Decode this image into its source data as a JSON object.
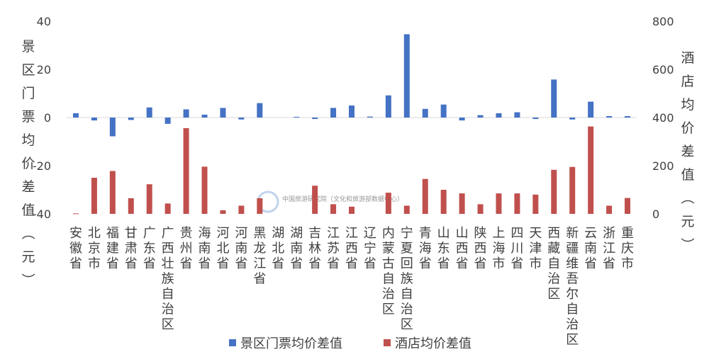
{
  "chart_data": {
    "type": "bar",
    "categories": [
      "安徽省",
      "北京市",
      "福建省",
      "甘肃省",
      "广东省",
      "广西壮族自治区",
      "贵州省",
      "海南省",
      "河北省",
      "河南省",
      "黑龙江省",
      "湖北省",
      "湖南省",
      "吉林省",
      "江苏省",
      "江西省",
      "辽宁省",
      "内蒙古自治区",
      "宁夏回族自治区",
      "青海省",
      "山东省",
      "山西省",
      "陕西省",
      "上海市",
      "四川省",
      "天津市",
      "西藏自治区",
      "新疆维吾尔自治区",
      "云南省",
      "浙江省",
      "重庆市"
    ],
    "series": [
      {
        "name": "景区门票均价差值",
        "color": "#4472c4",
        "axis": "left",
        "values": [
          1.8,
          -1.2,
          -7.8,
          -1.0,
          4.2,
          -2.6,
          3.4,
          1.2,
          4.0,
          -0.8,
          6.0,
          0.0,
          0.3,
          -0.6,
          4.0,
          5.0,
          0.4,
          9.2,
          34.6,
          3.6,
          5.4,
          -1.2,
          1.0,
          1.8,
          2.2,
          -0.6,
          15.8,
          -0.8,
          6.6,
          0.6,
          0.6
        ]
      },
      {
        "name": "酒店均价差值",
        "color": "#c0504d",
        "axis": "right",
        "values": [
          2,
          150,
          178,
          65,
          123,
          43,
          356,
          196,
          15,
          34,
          65,
          0,
          0,
          117,
          40,
          30,
          0,
          88,
          34,
          145,
          100,
          85,
          40,
          85,
          85,
          80,
          183,
          195,
          363,
          34,
          66
        ]
      }
    ],
    "y_left": {
      "label": "景区门票均价差值（元）",
      "ticks": [
        "40",
        "20",
        "0",
        "-20",
        "-40"
      ],
      "ylim": [
        -40,
        40
      ]
    },
    "y_right": {
      "label": "酒店均价差值（元）",
      "ticks": [
        "800",
        "600",
        "400",
        "200",
        "0"
      ],
      "ylim": [
        0,
        800
      ]
    },
    "legend_position": "bottom",
    "grid": false,
    "watermark_text": "中国旅游研究院（文化和旅游部数据中心）"
  }
}
